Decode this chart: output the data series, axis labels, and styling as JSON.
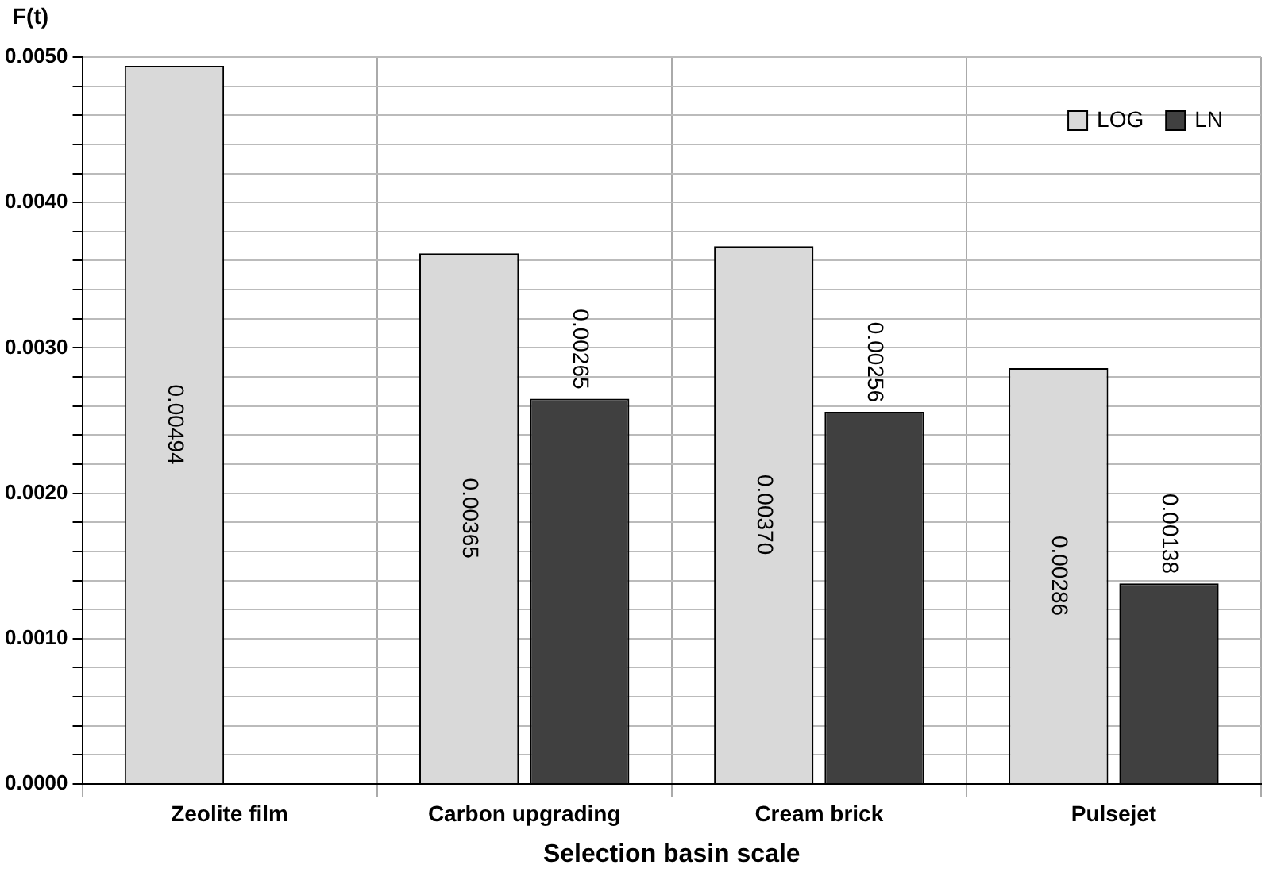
{
  "chart_data": {
    "type": "bar",
    "ylabel": "F(t)",
    "xlabel": "Selection basin scale",
    "categories": [
      "Zeolite film",
      "Carbon upgrading",
      "Cream brick",
      "Pulsejet"
    ],
    "series": [
      {
        "name": "LOG",
        "color": "#d9d9d9",
        "values": [
          0.00494,
          0.00365,
          0.0037,
          0.00286
        ],
        "value_labels": [
          "0.00494",
          "0.00365",
          "0.00370",
          "0.00286"
        ]
      },
      {
        "name": "LN",
        "color": "#404040",
        "values": [
          null,
          0.00265,
          0.00256,
          0.00138
        ],
        "value_labels": [
          null,
          "0.00265",
          "0.00256",
          "0.00138"
        ]
      }
    ],
    "ylim": [
      0,
      0.005
    ],
    "yticks": [
      {
        "value": 0,
        "label": "0.0000"
      },
      {
        "value": 0.001,
        "label": "0.0010"
      },
      {
        "value": 0.002,
        "label": "0.0020"
      },
      {
        "value": 0.003,
        "label": "0.0030"
      },
      {
        "value": 0.004,
        "label": "0.0040"
      },
      {
        "value": 0.005,
        "label": "0.0050"
      }
    ],
    "grid": true,
    "legend": "top right"
  }
}
